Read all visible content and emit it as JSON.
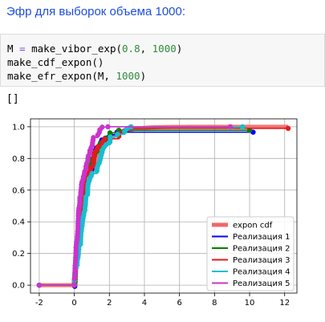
{
  "heading": "Эфр для выборок объема 1000:",
  "code": {
    "line1": {
      "var": "M",
      "op": "=",
      "func": "make_vibor_exp(",
      "arg1": "0.8",
      "sep": ", ",
      "arg2": "1000",
      "end": ")"
    },
    "line2": {
      "text": "make_cdf_expon()"
    },
    "line3": {
      "func": "make_efr_expon(",
      "arg1": "M",
      "sep": ", ",
      "arg2": "1000",
      "end": ")"
    }
  },
  "output": "[]",
  "chart_data": {
    "type": "line",
    "xlim": [
      -2.5,
      12.7
    ],
    "ylim": [
      -0.05,
      1.05
    ],
    "xticks": [
      -2,
      0,
      2,
      4,
      6,
      8,
      10,
      12
    ],
    "yticks": [
      0.0,
      0.2,
      0.4,
      0.6,
      0.8,
      1.0
    ],
    "grid": true,
    "legend_position": "bottom-right",
    "series": [
      {
        "name": "expon cdf",
        "color": "#f26666",
        "kind": "cdf",
        "rate": 1.25,
        "x_range": [
          -2,
          12.2
        ]
      },
      {
        "name": "Реализация 1",
        "color": "#0000ff",
        "kind": "ecdf",
        "rate": 1.25,
        "seed": 11,
        "x_max": 10.2
      },
      {
        "name": "Реализация 2",
        "color": "#008000",
        "kind": "ecdf",
        "rate": 1.25,
        "seed": 23,
        "x_max": 10.0
      },
      {
        "name": "Реализация 3",
        "color": "#e31a1c",
        "kind": "ecdf",
        "rate": 1.25,
        "seed": 37,
        "x_max": 12.2
      },
      {
        "name": "Реализация 4",
        "color": "#17becf",
        "kind": "ecdf",
        "rate": 1.25,
        "seed": 41,
        "x_max": 9.6
      },
      {
        "name": "Реализация 5",
        "color": "#cc33cc",
        "kind": "ecdf",
        "rate": 1.25,
        "seed": 53,
        "x_max": 8.9
      }
    ]
  }
}
